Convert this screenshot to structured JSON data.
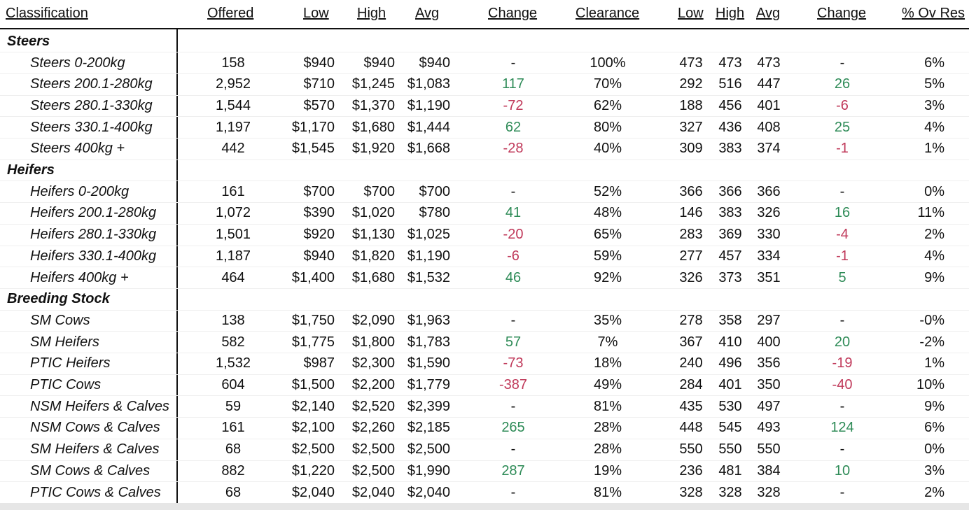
{
  "headers": {
    "classification": "Classification",
    "offered": "Offered",
    "low": "Low",
    "high": "High",
    "avg": "Avg",
    "change": "Change",
    "clearance": "Clearance",
    "low2": "Low",
    "high2": "High",
    "avg2": "Avg",
    "change2": "Change",
    "ov_res": "% Ov Res"
  },
  "colors": {
    "positive": "#2e8b57",
    "negative": "#c0395a"
  },
  "rows": [
    {
      "section": true,
      "label": "Steers"
    },
    {
      "label": "Steers 0-200kg",
      "offered": "158",
      "low": "$940",
      "high": "$940",
      "avg": "$940",
      "change": "-",
      "clearance": "100%",
      "low2": "473",
      "high2": "473",
      "avg2": "473",
      "change2": "-",
      "ov": "6%"
    },
    {
      "label": "Steers 200.1-280kg",
      "offered": "2,952",
      "low": "$710",
      "high": "$1,245",
      "avg": "$1,083",
      "change": "117",
      "clearance": "70%",
      "low2": "292",
      "high2": "516",
      "avg2": "447",
      "change2": "26",
      "ov": "5%"
    },
    {
      "label": "Steers 280.1-330kg",
      "offered": "1,544",
      "low": "$570",
      "high": "$1,370",
      "avg": "$1,190",
      "change": "-72",
      "clearance": "62%",
      "low2": "188",
      "high2": "456",
      "avg2": "401",
      "change2": "-6",
      "ov": "3%"
    },
    {
      "label": "Steers 330.1-400kg",
      "offered": "1,197",
      "low": "$1,170",
      "high": "$1,680",
      "avg": "$1,444",
      "change": "62",
      "clearance": "80%",
      "low2": "327",
      "high2": "436",
      "avg2": "408",
      "change2": "25",
      "ov": "4%"
    },
    {
      "label": "Steers 400kg +",
      "offered": "442",
      "low": "$1,545",
      "high": "$1,920",
      "avg": "$1,668",
      "change": "-28",
      "clearance": "40%",
      "low2": "309",
      "high2": "383",
      "avg2": "374",
      "change2": "-1",
      "ov": "1%"
    },
    {
      "section": true,
      "label": "Heifers"
    },
    {
      "label": "Heifers 0-200kg",
      "offered": "161",
      "low": "$700",
      "high": "$700",
      "avg": "$700",
      "change": "-",
      "clearance": "52%",
      "low2": "366",
      "high2": "366",
      "avg2": "366",
      "change2": "-",
      "ov": "0%"
    },
    {
      "label": "Heifers 200.1-280kg",
      "offered": "1,072",
      "low": "$390",
      "high": "$1,020",
      "avg": "$780",
      "change": "41",
      "clearance": "48%",
      "low2": "146",
      "high2": "383",
      "avg2": "326",
      "change2": "16",
      "ov": "11%"
    },
    {
      "label": "Heifers 280.1-330kg",
      "offered": "1,501",
      "low": "$920",
      "high": "$1,130",
      "avg": "$1,025",
      "change": "-20",
      "clearance": "65%",
      "low2": "283",
      "high2": "369",
      "avg2": "330",
      "change2": "-4",
      "ov": "2%"
    },
    {
      "label": "Heifers 330.1-400kg",
      "offered": "1,187",
      "low": "$940",
      "high": "$1,820",
      "avg": "$1,190",
      "change": "-6",
      "clearance": "59%",
      "low2": "277",
      "high2": "457",
      "avg2": "334",
      "change2": "-1",
      "ov": "4%"
    },
    {
      "label": "Heifers 400kg +",
      "offered": "464",
      "low": "$1,400",
      "high": "$1,680",
      "avg": "$1,532",
      "change": "46",
      "clearance": "92%",
      "low2": "326",
      "high2": "373",
      "avg2": "351",
      "change2": "5",
      "ov": "9%"
    },
    {
      "section": true,
      "label": "Breeding Stock"
    },
    {
      "label": "SM Cows",
      "offered": "138",
      "low": "$1,750",
      "high": "$2,090",
      "avg": "$1,963",
      "change": "-",
      "clearance": "35%",
      "low2": "278",
      "high2": "358",
      "avg2": "297",
      "change2": "-",
      "ov": "-0%"
    },
    {
      "label": "SM Heifers",
      "offered": "582",
      "low": "$1,775",
      "high": "$1,800",
      "avg": "$1,783",
      "change": "57",
      "clearance": "7%",
      "low2": "367",
      "high2": "410",
      "avg2": "400",
      "change2": "20",
      "ov": "-2%"
    },
    {
      "label": "PTIC Heifers",
      "offered": "1,532",
      "low": "$987",
      "high": "$2,300",
      "avg": "$1,590",
      "change": "-73",
      "clearance": "18%",
      "low2": "240",
      "high2": "496",
      "avg2": "356",
      "change2": "-19",
      "ov": "1%"
    },
    {
      "label": "PTIC Cows",
      "offered": "604",
      "low": "$1,500",
      "high": "$2,200",
      "avg": "$1,779",
      "change": "-387",
      "clearance": "49%",
      "low2": "284",
      "high2": "401",
      "avg2": "350",
      "change2": "-40",
      "ov": "10%"
    },
    {
      "label": "NSM Heifers & Calves",
      "offered": "59",
      "low": "$2,140",
      "high": "$2,520",
      "avg": "$2,399",
      "change": "-",
      "clearance": "81%",
      "low2": "435",
      "high2": "530",
      "avg2": "497",
      "change2": "-",
      "ov": "9%"
    },
    {
      "label": "NSM Cows & Calves",
      "offered": "161",
      "low": "$2,100",
      "high": "$2,260",
      "avg": "$2,185",
      "change": "265",
      "clearance": "28%",
      "low2": "448",
      "high2": "545",
      "avg2": "493",
      "change2": "124",
      "ov": "6%"
    },
    {
      "label": "SM Heifers & Calves",
      "offered": "68",
      "low": "$2,500",
      "high": "$2,500",
      "avg": "$2,500",
      "change": "-",
      "clearance": "28%",
      "low2": "550",
      "high2": "550",
      "avg2": "550",
      "change2": "-",
      "ov": "0%"
    },
    {
      "label": "SM Cows & Calves",
      "offered": "882",
      "low": "$1,220",
      "high": "$2,500",
      "avg": "$1,990",
      "change": "287",
      "clearance": "19%",
      "low2": "236",
      "high2": "481",
      "avg2": "384",
      "change2": "10",
      "ov": "3%"
    },
    {
      "label": "PTIC Cows & Calves",
      "offered": "68",
      "low": "$2,040",
      "high": "$2,040",
      "avg": "$2,040",
      "change": "-",
      "clearance": "81%",
      "low2": "328",
      "high2": "328",
      "avg2": "328",
      "change2": "-",
      "ov": "2%"
    }
  ]
}
